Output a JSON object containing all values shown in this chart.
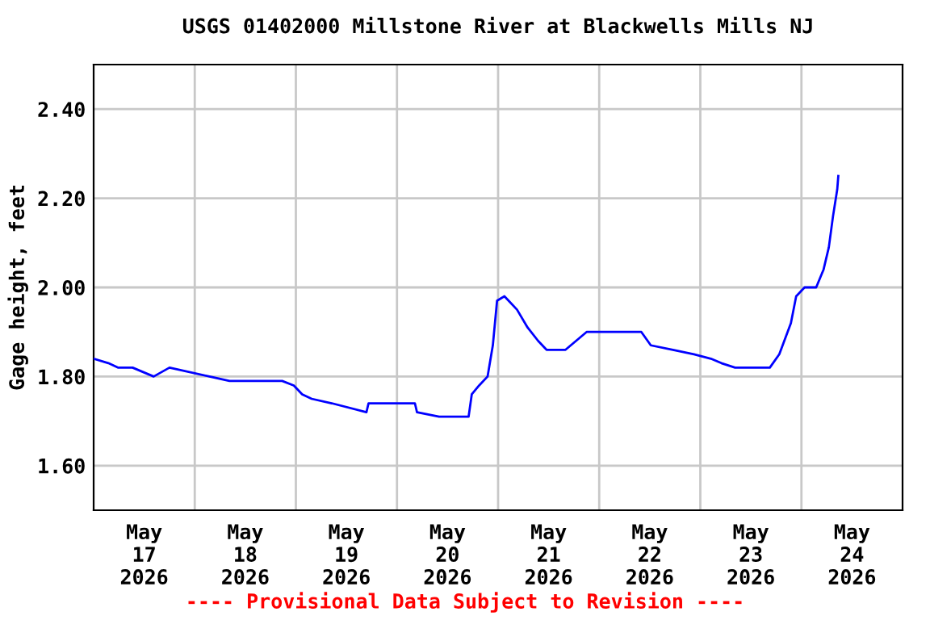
{
  "chart_data": {
    "type": "line",
    "title": "USGS 01402000 Millstone River at Blackwells Mills NJ",
    "ylabel": "Gage height, feet",
    "x": [
      "2026-05-17T00:00",
      "2026-05-17T03:30",
      "2026-05-17T05:45",
      "2026-05-17T09:15",
      "2026-05-17T14:15",
      "2026-05-17T18:00",
      "2026-05-18T03:30",
      "2026-05-18T08:15",
      "2026-05-18T20:45",
      "2026-05-18T23:30",
      "2026-05-19T01:30",
      "2026-05-19T03:45",
      "2026-05-19T08:30",
      "2026-05-19T16:45",
      "2026-05-19T17:15",
      "2026-05-20T04:15",
      "2026-05-20T04:45",
      "2026-05-20T10:00",
      "2026-05-20T15:00",
      "2026-05-20T17:00",
      "2026-05-20T17:45",
      "2026-05-20T19:30",
      "2026-05-20T21:30",
      "2026-05-20T22:45",
      "2026-05-20T23:45",
      "2026-05-21T01:30",
      "2026-05-21T02:30",
      "2026-05-21T04:30",
      "2026-05-21T07:00",
      "2026-05-21T09:30",
      "2026-05-21T11:30",
      "2026-05-21T16:00",
      "2026-05-21T18:30",
      "2026-05-21T21:00",
      "2026-05-22T04:30",
      "2026-05-22T05:30",
      "2026-05-22T10:00",
      "2026-05-22T12:15",
      "2026-05-22T17:30",
      "2026-05-22T22:30",
      "2026-05-23T02:30",
      "2026-05-23T05:00",
      "2026-05-23T08:15",
      "2026-05-23T11:15",
      "2026-05-23T14:45",
      "2026-05-23T16:30",
      "2026-05-23T18:45",
      "2026-05-23T21:30",
      "2026-05-23T22:45",
      "2026-05-24T00:45",
      "2026-05-24T03:30",
      "2026-05-24T05:15",
      "2026-05-24T06:30",
      "2026-05-24T07:30",
      "2026-05-24T08:30",
      "2026-05-24T08:45"
    ],
    "series": [
      {
        "color": "#0000ff",
        "values": [
          1.84,
          1.83,
          1.82,
          1.82,
          1.8,
          1.82,
          1.8,
          1.79,
          1.79,
          1.78,
          1.76,
          1.75,
          1.74,
          1.72,
          1.74,
          1.74,
          1.72,
          1.71,
          1.71,
          1.71,
          1.76,
          1.78,
          1.8,
          1.87,
          1.97,
          1.98,
          1.97,
          1.95,
          1.91,
          1.88,
          1.86,
          1.86,
          1.88,
          1.9,
          1.9,
          1.9,
          1.9,
          1.87,
          1.86,
          1.85,
          1.84,
          1.83,
          1.82,
          1.82,
          1.82,
          1.82,
          1.85,
          1.92,
          1.98,
          2.0,
          2.0,
          2.04,
          2.09,
          2.16,
          2.22,
          2.25
        ]
      }
    ],
    "xlim": [
      "2026-05-17T00:00",
      "2026-05-25T00:00"
    ],
    "xticks": [
      {
        "value": "2026-05-17T12:00",
        "label": "May\n17\n2026"
      },
      {
        "value": "2026-05-18T00:00",
        "label": null
      },
      {
        "value": "2026-05-18T12:00",
        "label": "May\n18\n2026"
      },
      {
        "value": "2026-05-19T00:00",
        "label": null
      },
      {
        "value": "2026-05-19T12:00",
        "label": "May\n19\n2026"
      },
      {
        "value": "2026-05-20T00:00",
        "label": null
      },
      {
        "value": "2026-05-20T12:00",
        "label": "May\n20\n2026"
      },
      {
        "value": "2026-05-21T00:00",
        "label": null
      },
      {
        "value": "2026-05-21T12:00",
        "label": "May\n21\n2026"
      },
      {
        "value": "2026-05-22T00:00",
        "label": null
      },
      {
        "value": "2026-05-22T12:00",
        "label": "May\n22\n2026"
      },
      {
        "value": "2026-05-23T00:00",
        "label": null
      },
      {
        "value": "2026-05-23T12:00",
        "label": "May\n23\n2026"
      },
      {
        "value": "2026-05-24T00:00",
        "label": null
      },
      {
        "value": "2026-05-24T12:00",
        "label": "May\n24\n2026"
      }
    ],
    "ylim": [
      1.5,
      2.5
    ],
    "yticks": [
      {
        "value": 1.6,
        "label": "1.60"
      },
      {
        "value": 1.8,
        "label": "1.80"
      },
      {
        "value": 2.0,
        "label": "2.00"
      },
      {
        "value": 2.2,
        "label": "2.20"
      },
      {
        "value": 2.4,
        "label": "2.40"
      }
    ],
    "grid": true,
    "marker": "none",
    "line_style": "solid",
    "annotations": [
      "---- Provisional Data Subject to Revision ----"
    ]
  }
}
